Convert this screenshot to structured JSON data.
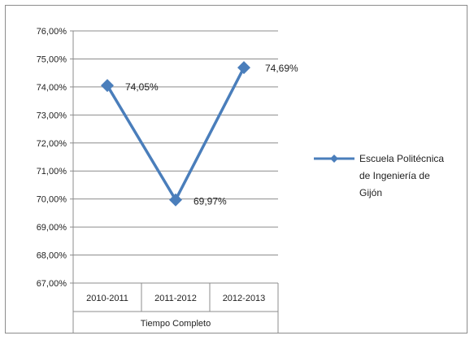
{
  "chart_data": {
    "type": "line",
    "title": "",
    "xlabel": "Tiempo Completo",
    "ylabel": "",
    "categories": [
      "2010-2011",
      "2011-2012",
      "2012-2013"
    ],
    "y_ticks": [
      "67,00%",
      "68,00%",
      "69,00%",
      "70,00%",
      "71,00%",
      "72,00%",
      "73,00%",
      "74,00%",
      "75,00%",
      "76,00%"
    ],
    "ylim": [
      67,
      76
    ],
    "grid": true,
    "legend_position": "right",
    "series": [
      {
        "name": "Escuela Politécnica de Ingeniería de Gijón",
        "legend_lines": [
          "Escuela Politécnica",
          "de Ingeniería de",
          "Gijón"
        ],
        "values": [
          74.05,
          69.97,
          74.69
        ],
        "data_labels": [
          "74,05%",
          "69,97%",
          "74,69%"
        ],
        "color": "#4a7ebb"
      }
    ]
  }
}
